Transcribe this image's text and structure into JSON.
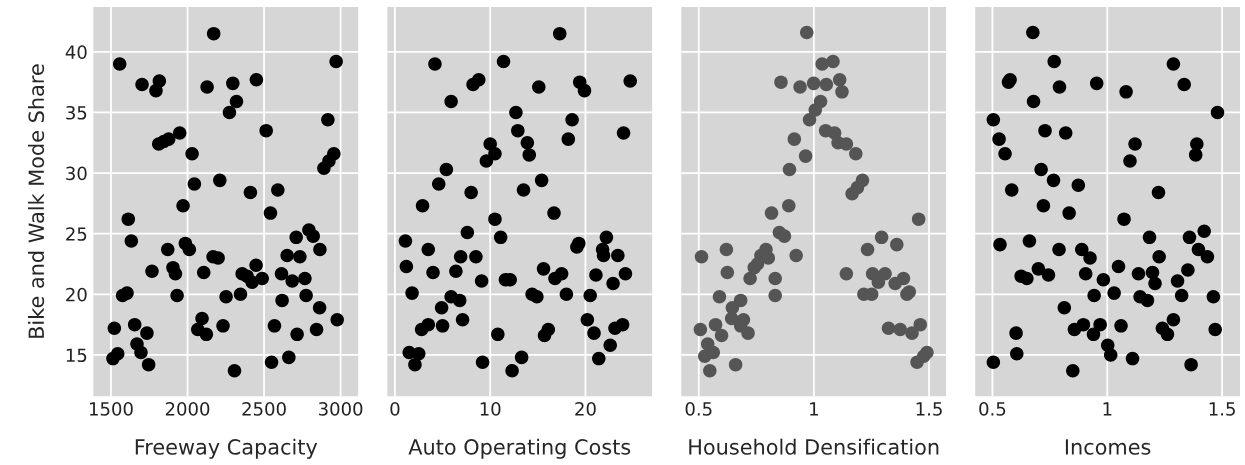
{
  "chart_data": [
    {
      "type": "scatter",
      "xlabel": "Freeway Capacity",
      "ylabel": "Bike and Walk Mode Share",
      "xlim": [
        1385,
        3115
      ],
      "xticks": [
        1500,
        2000,
        2500,
        3000
      ],
      "ylim": [
        11.6,
        43.7
      ],
      "yticks": [
        15,
        20,
        25,
        30,
        35,
        40
      ],
      "grid": true,
      "marker": "circle",
      "series": [
        {
          "color": "#000000",
          "x": [
            2171,
            1557,
            2971,
            1703,
            1816,
            1794,
            2128,
            2296,
            2450,
            2320,
            2274,
            2917,
            2514,
            1949,
            1812,
            1845,
            1877,
            2030,
            2956,
            2924,
            2891,
            2045,
            2211,
            2411,
            2590,
            2542,
            1971,
            1613,
            1633,
            2710,
            2793,
            2821,
            2865,
            1871,
            1986,
            2012,
            2651,
            2734,
            2167,
            2200,
            1768,
            1905,
            1921,
            2106,
            2357,
            2389,
            2448,
            2422,
            2488,
            2614,
            2684,
            2767,
            1576,
            1605,
            1932,
            2252,
            2346,
            2618,
            2775,
            2863,
            2978,
            1522,
            1655,
            1735,
            2095,
            2067,
            2123,
            2232,
            2568,
            2716,
            2843,
            1670,
            1696,
            1513,
            1544,
            1746,
            2549,
            2662,
            2307
          ],
          "values": [
            41.5,
            39.0,
            39.2,
            37.3,
            37.6,
            36.8,
            37.1,
            37.4,
            37.7,
            35.9,
            35.0,
            34.4,
            33.5,
            33.3,
            32.4,
            32.6,
            32.8,
            31.6,
            31.6,
            31.0,
            30.4,
            29.1,
            29.4,
            28.4,
            28.6,
            26.7,
            27.3,
            26.2,
            24.4,
            24.7,
            25.3,
            24.8,
            23.7,
            23.7,
            24.2,
            23.7,
            23.2,
            23.1,
            23.1,
            23.0,
            21.9,
            22.2,
            21.7,
            21.8,
            21.7,
            21.5,
            22.4,
            21.0,
            21.3,
            21.7,
            21.1,
            21.3,
            19.9,
            20.1,
            19.9,
            19.8,
            20.0,
            19.5,
            19.9,
            18.9,
            17.9,
            17.2,
            17.5,
            16.8,
            18.0,
            17.1,
            16.7,
            17.4,
            17.4,
            16.7,
            17.1,
            15.9,
            15.2,
            14.7,
            15.1,
            14.2,
            14.4,
            14.8,
            13.7
          ]
        }
      ]
    },
    {
      "type": "scatter",
      "xlabel": "Auto Operating Costs",
      "xlim": [
        -0.8,
        27.0
      ],
      "xticks": [
        0,
        10,
        20
      ],
      "ylim": [
        11.6,
        43.7
      ],
      "yticks": [
        15,
        20,
        25,
        30,
        35,
        40
      ],
      "tick_labels": "x",
      "grid": true,
      "marker": "circle",
      "series": [
        {
          "color": "#000000",
          "x": [
            17.3,
            4.2,
            11.4,
            8.2,
            8.8,
            15.1,
            19.4,
            19.9,
            24.7,
            5.9,
            12.7,
            18.6,
            12.9,
            18.2,
            24.0,
            10.0,
            13.9,
            10.5,
            14.1,
            9.6,
            5.4,
            4.6,
            8.0,
            13.5,
            15.4,
            2.9,
            16.7,
            10.5,
            1.1,
            7.6,
            11.1,
            3.5,
            6.9,
            8.5,
            19.1,
            19.3,
            22.2,
            21.8,
            21.9,
            23.4,
            1.2,
            4.0,
            6.4,
            9.1,
            11.6,
            12.1,
            15.6,
            16.8,
            17.5,
            21.1,
            22.9,
            24.2,
            1.8,
            5.9,
            6.8,
            4.9,
            14.4,
            14.9,
            18.0,
            20.5,
            7.1,
            2.8,
            3.5,
            5.0,
            10.8,
            15.7,
            16.1,
            20.2,
            20.9,
            23.1,
            23.9,
            22.6,
            1.5,
            2.5,
            2.1,
            9.2,
            13.3,
            12.3,
            21.4
          ],
          "values": [
            41.5,
            39.0,
            39.2,
            37.3,
            37.7,
            37.1,
            37.5,
            36.8,
            37.6,
            35.9,
            35.0,
            34.4,
            33.5,
            32.8,
            33.3,
            32.4,
            32.5,
            31.6,
            31.5,
            31.0,
            30.3,
            29.1,
            28.4,
            28.6,
            29.4,
            27.3,
            26.7,
            26.2,
            24.4,
            25.1,
            24.7,
            23.7,
            23.1,
            23.1,
            23.9,
            24.2,
            24.7,
            23.7,
            23.2,
            23.2,
            22.3,
            21.8,
            21.9,
            21.1,
            21.2,
            21.2,
            22.1,
            21.3,
            21.7,
            21.6,
            20.9,
            21.7,
            20.1,
            19.8,
            19.5,
            18.9,
            20.0,
            19.8,
            20.0,
            19.9,
            17.9,
            17.1,
            17.5,
            17.4,
            16.7,
            16.6,
            17.1,
            17.9,
            16.8,
            17.2,
            17.5,
            15.8,
            15.2,
            15.1,
            14.2,
            14.4,
            14.8,
            13.7,
            14.7
          ]
        }
      ]
    },
    {
      "type": "scatter",
      "xlabel": "Household Densification",
      "xlim": [
        0.424,
        1.574
      ],
      "xticks": [
        0.5,
        1,
        1.5
      ],
      "ylim": [
        11.6,
        43.7
      ],
      "yticks": [
        15,
        20,
        25,
        30,
        35,
        40
      ],
      "tick_labels": "x",
      "grid": true,
      "marker": "circle",
      "series": [
        {
          "color": "#555555",
          "x": [
            0.969,
            1.036,
            1.083,
            0.857,
            0.94,
            0.999,
            1.054,
            1.112,
            1.122,
            1.029,
            1.006,
            0.981,
            1.051,
            1.09,
            1.105,
            1.141,
            1.182,
            0.915,
            0.964,
            0.894,
            1.211,
            1.189,
            1.166,
            0.891,
            0.816,
            1.455,
            0.85,
            0.872,
            1.294,
            1.36,
            1.233,
            0.62,
            0.512,
            0.923,
            0.792,
            0.77,
            0.802,
            0.741,
            0.755,
            0.723,
            0.832,
            0.624,
            1.141,
            1.255,
            1.28,
            1.309,
            1.353,
            1.389,
            0.59,
            0.832,
            1.217,
            1.251,
            1.404,
            1.414,
            0.682,
            0.646,
            0.643,
            0.694,
            0.573,
            0.507,
            0.599,
            0.682,
            0.714,
            1.324,
            1.375,
            1.426,
            1.462,
            0.539,
            0.526,
            0.563,
            0.548,
            0.66,
            1.448,
            1.477,
            1.491
          ],
          "values": [
            41.6,
            39.0,
            39.2,
            37.5,
            37.1,
            37.4,
            37.3,
            37.7,
            36.7,
            35.9,
            35.2,
            34.4,
            33.5,
            33.3,
            32.5,
            32.4,
            31.6,
            32.8,
            31.4,
            30.3,
            29.4,
            28.8,
            28.3,
            27.3,
            26.7,
            26.2,
            25.1,
            24.8,
            24.7,
            24.1,
            23.7,
            23.7,
            23.1,
            23.2,
            23.7,
            23.2,
            23.0,
            22.2,
            22.5,
            21.3,
            21.3,
            21.8,
            21.7,
            21.7,
            21.0,
            21.7,
            20.9,
            21.3,
            19.8,
            19.9,
            20.0,
            20.0,
            20.0,
            20.2,
            19.5,
            18.9,
            18.0,
            17.9,
            17.5,
            17.1,
            16.6,
            17.4,
            16.8,
            17.2,
            17.1,
            16.8,
            17.5,
            15.9,
            14.9,
            15.2,
            13.7,
            14.2,
            14.4,
            14.9,
            15.2
          ]
        }
      ]
    },
    {
      "type": "scatter",
      "xlabel": "Incomes",
      "xlim": [
        0.425,
        1.578
      ],
      "xticks": [
        0.5,
        1,
        1.5
      ],
      "ylim": [
        11.6,
        43.7
      ],
      "yticks": [
        15,
        20,
        25,
        30,
        35,
        40
      ],
      "tick_labels": "x",
      "grid": true,
      "marker": "circle",
      "series": [
        {
          "color": "#000000",
          "x": [
            0.676,
            0.769,
            1.288,
            0.57,
            0.577,
            0.792,
            0.954,
            1.082,
            1.335,
            0.679,
            1.48,
            0.504,
            0.729,
            0.819,
            0.529,
            0.555,
            1.121,
            1.099,
            1.39,
            1.385,
            0.712,
            0.766,
            0.874,
            0.584,
            1.223,
            0.722,
            0.834,
            1.073,
            0.533,
            0.661,
            0.79,
            0.889,
            0.925,
            1.184,
            1.358,
            1.422,
            1.397,
            1.436,
            1.226,
            0.625,
            0.65,
            0.7,
            0.744,
            0.906,
            0.983,
            1.049,
            1.136,
            1.197,
            1.208,
            1.306,
            1.351,
            0.943,
            1.03,
            1.143,
            1.175,
            1.324,
            1.462,
            0.813,
            0.857,
            0.896,
            0.969,
            0.94,
            1.06,
            1.24,
            1.262,
            1.288,
            1.47,
            0.603,
            0.606,
            0.504,
            0.85,
            1.002,
            1.015,
            1.11,
            1.365
          ],
          "values": [
            41.6,
            39.2,
            39.0,
            37.5,
            37.7,
            37.1,
            37.4,
            36.7,
            37.3,
            35.9,
            35.0,
            34.4,
            33.5,
            33.3,
            32.8,
            31.6,
            32.4,
            31.0,
            32.4,
            31.5,
            30.3,
            29.4,
            29.0,
            28.6,
            28.4,
            27.3,
            26.7,
            26.2,
            24.1,
            24.4,
            23.7,
            23.7,
            23.0,
            24.7,
            24.7,
            25.2,
            23.7,
            23.1,
            23.1,
            21.5,
            21.3,
            22.1,
            21.6,
            21.7,
            21.2,
            22.3,
            21.7,
            21.8,
            20.9,
            21.1,
            22.0,
            19.9,
            20.1,
            19.8,
            19.5,
            19.9,
            19.8,
            18.9,
            17.1,
            17.5,
            17.5,
            16.7,
            17.4,
            17.2,
            16.7,
            17.9,
            17.1,
            16.8,
            15.1,
            14.4,
            13.7,
            15.8,
            15.0,
            14.7,
            14.2
          ]
        }
      ]
    }
  ]
}
